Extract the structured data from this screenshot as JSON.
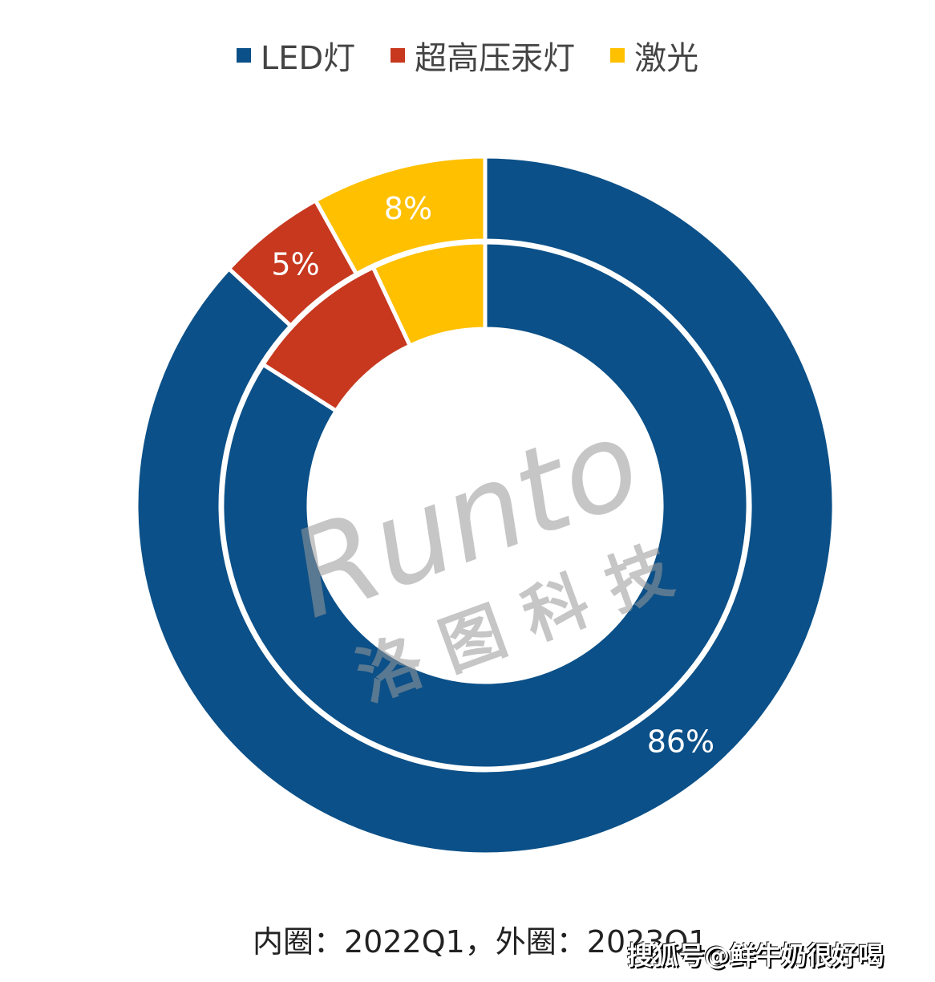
{
  "chart_data": {
    "type": "pie",
    "subtype": "double-donut",
    "categories": [
      "LED灯",
      "超高压汞灯",
      "激光"
    ],
    "colors": [
      "#0B5088",
      "#C7381F",
      "#FFC000"
    ],
    "series": [
      {
        "name": "2022Q1",
        "ring": "inner",
        "values": [
          84,
          9,
          7
        ],
        "labels_shown": false
      },
      {
        "name": "2023Q1",
        "ring": "outer",
        "values": [
          86,
          5,
          8
        ],
        "data_labels": [
          "86%",
          "5%",
          "8%"
        ]
      }
    ],
    "legend_position": "top",
    "caption": "内圈：2022Q1，外圈：2023Q1"
  },
  "watermarks": {
    "logo": "Runto 洛图科技",
    "source": "搜狐号@鲜牛奶很好喝"
  }
}
